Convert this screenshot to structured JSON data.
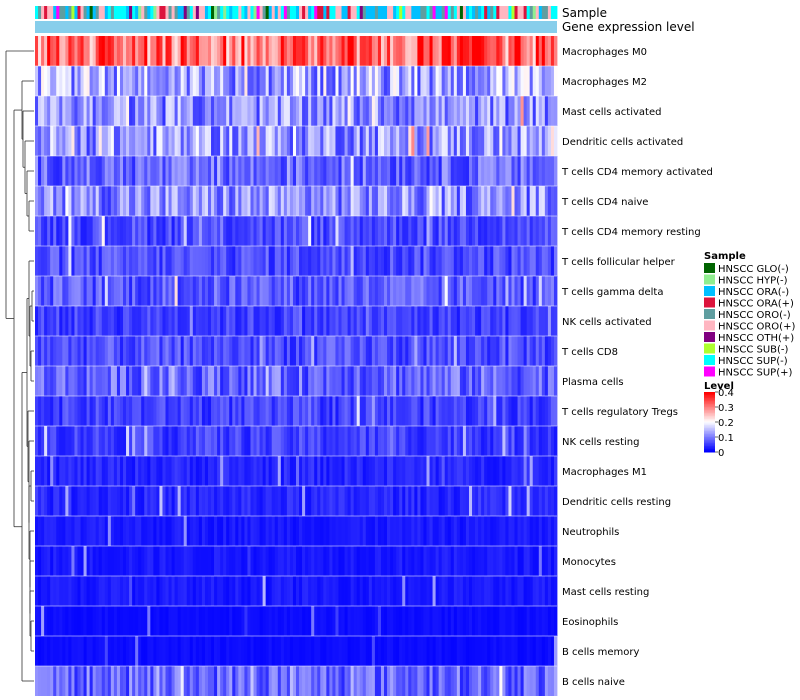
{
  "chart_data": {
    "type": "heatmap",
    "title": "",
    "annotation_tracks": [
      "Sample",
      "Gene expression level"
    ],
    "rows": [
      "Macrophages M0",
      "Macrophages M2",
      "Mast cells activated",
      "Dendritic cells activated",
      "T cells CD4 memory activated",
      "T cells CD4 naive",
      "T cells CD4 memory resting",
      "T cells follicular helper",
      "T cells gamma delta",
      "NK cells activated",
      "T cells CD8",
      "Plasma cells",
      "T cells regulatory  Tregs",
      "NK cells resting",
      "Macrophages M1",
      "Dendritic cells resting",
      "Neutrophils",
      "Monocytes",
      "Mast cells resting",
      "Eosinophils",
      "B cells memory",
      "B cells naive"
    ],
    "row_mean_level": [
      0.32,
      0.13,
      0.11,
      0.12,
      0.08,
      0.11,
      0.06,
      0.06,
      0.07,
      0.05,
      0.06,
      0.08,
      0.05,
      0.05,
      0.03,
      0.03,
      0.02,
      0.02,
      0.02,
      0.01,
      0.01,
      0.08
    ],
    "n_samples": 172,
    "sample_legend": {
      "title": "Sample",
      "entries": [
        {
          "label": "HNSCC GLO(-)",
          "color": "#006400"
        },
        {
          "label": "HNSCC HYP(-)",
          "color": "#90ee90"
        },
        {
          "label": "HNSCC ORA(-)",
          "color": "#00bfff"
        },
        {
          "label": "HNSCC ORA(+)",
          "color": "#dc143c"
        },
        {
          "label": "HNSCC ORO(-)",
          "color": "#5f9ea0"
        },
        {
          "label": "HNSCC ORO(+)",
          "color": "#ffb6c1"
        },
        {
          "label": "HNSCC OTH(+)",
          "color": "#800080"
        },
        {
          "label": "HNSCC SUB(-)",
          "color": "#adff2f"
        },
        {
          "label": "HNSCC SUP(-)",
          "color": "#00ffff"
        },
        {
          "label": "HNSCC SUP(+)",
          "color": "#ff00ff"
        }
      ]
    },
    "level_legend": {
      "title": "Level",
      "ticks": [
        "0.4",
        "0.3",
        "0.2",
        "0.1",
        "0"
      ],
      "range": [
        0,
        0.4
      ],
      "colors": [
        "#0000ff",
        "#ffffff",
        "#ff0000"
      ]
    },
    "gene_expression_bar_color": "#87ceeb"
  }
}
